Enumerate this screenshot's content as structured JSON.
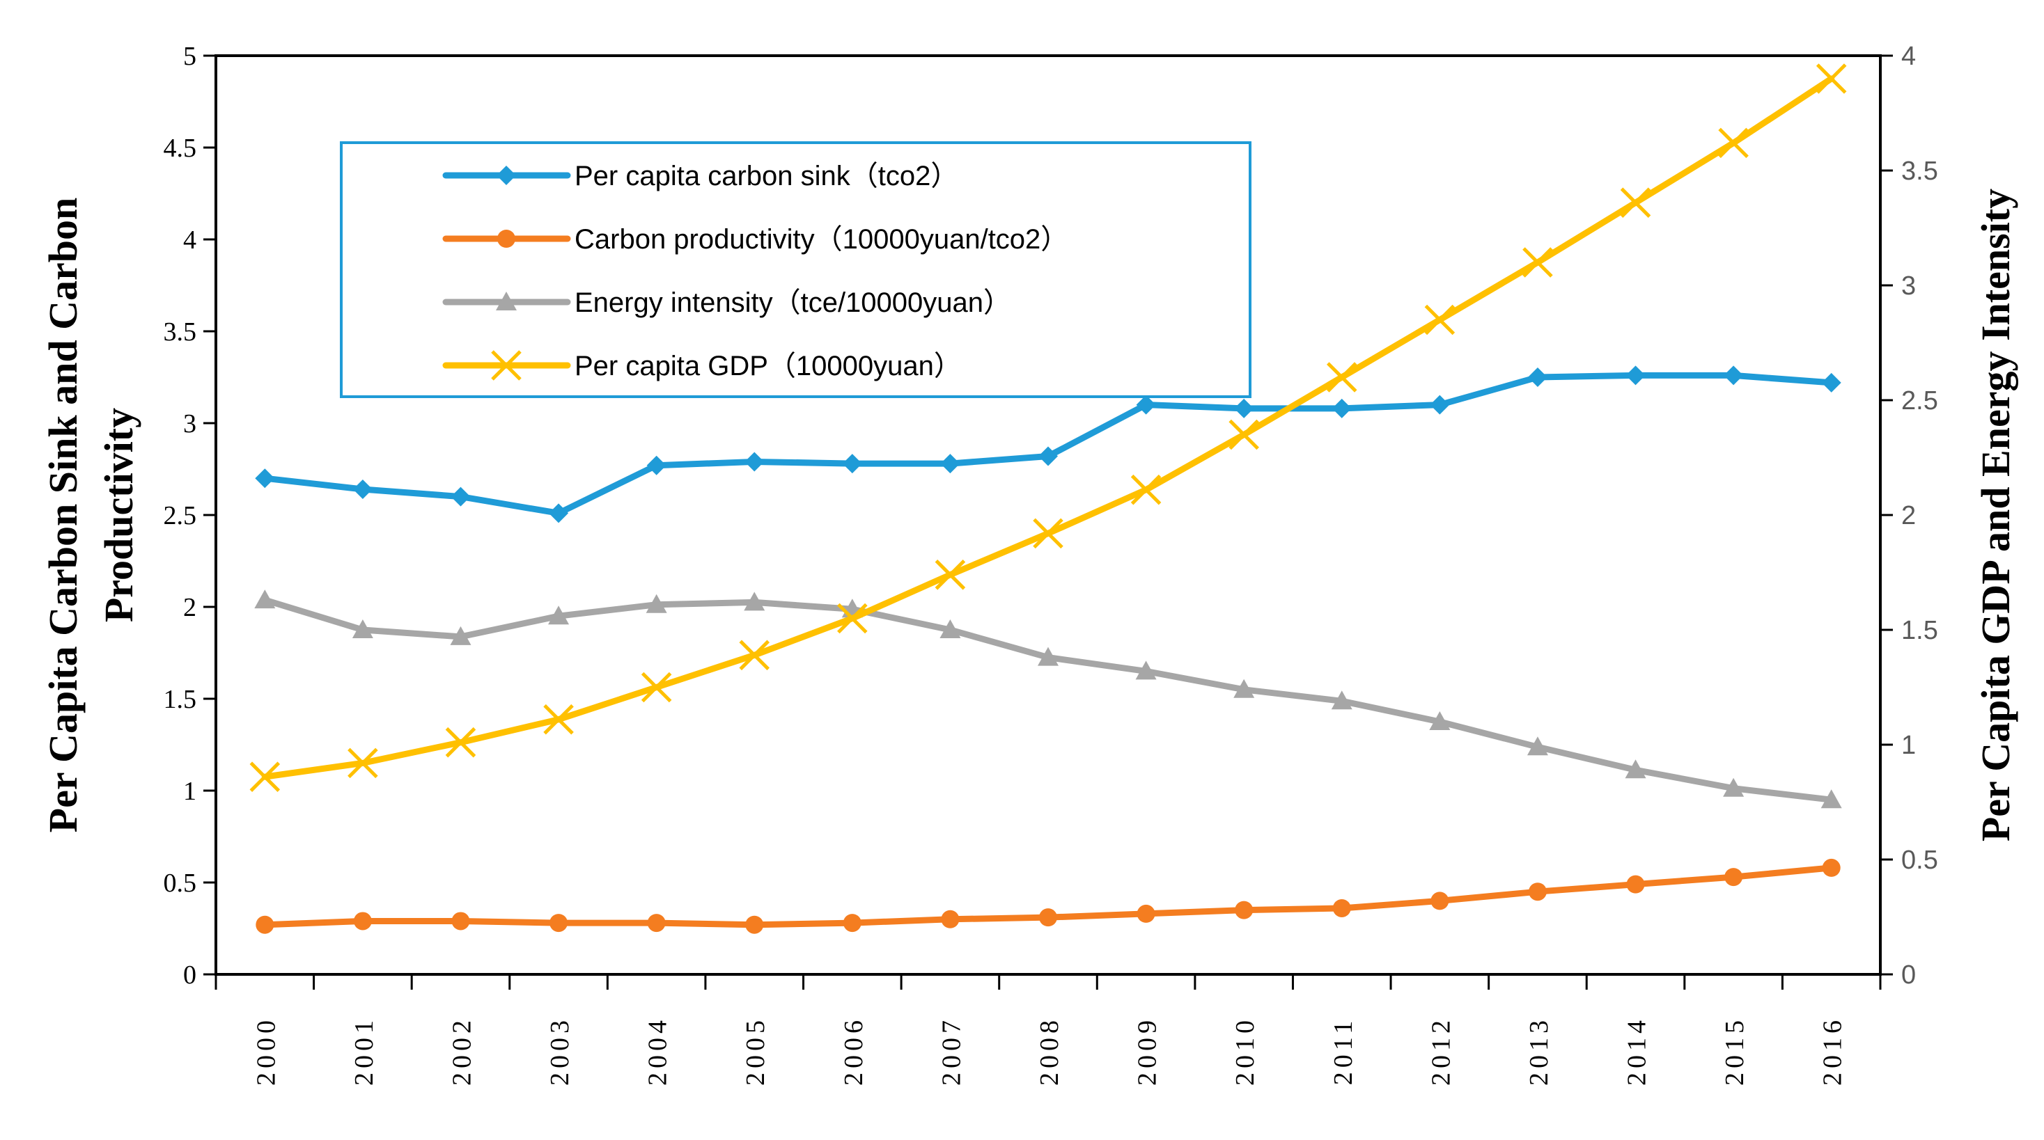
{
  "chart_data": {
    "type": "line",
    "categories": [
      "2000",
      "2001",
      "2002",
      "2003",
      "2004",
      "2005",
      "2006",
      "2007",
      "2008",
      "2009",
      "2010",
      "2011",
      "2012",
      "2013",
      "2014",
      "2015",
      "2016"
    ],
    "y_left": {
      "label_line1": "Per Capita Carbon Sink  and Carbon",
      "label_line2": "Productivity",
      "lim": [
        0,
        5
      ],
      "ticks": [
        "0",
        "0.5",
        "1",
        "1.5",
        "2",
        "2.5",
        "3",
        "3.5",
        "4",
        "4.5",
        "5"
      ]
    },
    "y_right": {
      "label": "Per Capita GDP and Energy Intensity",
      "lim": [
        0,
        4
      ],
      "ticks": [
        "0",
        "0.5",
        "1",
        "1.5",
        "2",
        "2.5",
        "3",
        "3.5",
        "4"
      ]
    },
    "series": [
      {
        "name": "Per capita carbon sink（tco2）",
        "axis": "left",
        "color": "#1f9bd7",
        "marker": "diamond",
        "values": [
          2.7,
          2.64,
          2.6,
          2.51,
          2.77,
          2.79,
          2.78,
          2.78,
          2.82,
          3.1,
          3.08,
          3.08,
          3.1,
          3.25,
          3.26,
          3.26,
          3.22
        ]
      },
      {
        "name": "Carbon productivity（10000yuan/tco2）",
        "axis": "left",
        "color": "#f47d20",
        "marker": "circle",
        "values": [
          0.27,
          0.29,
          0.29,
          0.28,
          0.28,
          0.27,
          0.28,
          0.3,
          0.31,
          0.33,
          0.35,
          0.36,
          0.4,
          0.45,
          0.49,
          0.53,
          0.58
        ]
      },
      {
        "name": "Energy intensity（tce/10000yuan）",
        "axis": "right",
        "color": "#a6a6a6",
        "marker": "triangle",
        "values": [
          1.63,
          1.5,
          1.47,
          1.56,
          1.61,
          1.62,
          1.59,
          1.5,
          1.38,
          1.32,
          1.24,
          1.19,
          1.1,
          0.99,
          0.89,
          0.81,
          0.76
        ]
      },
      {
        "name": "Per capita GDP（10000yuan）",
        "axis": "right",
        "color": "#ffc000",
        "marker": "x",
        "values": [
          0.86,
          0.92,
          1.01,
          1.11,
          1.25,
          1.39,
          1.55,
          1.74,
          1.92,
          2.11,
          2.35,
          2.6,
          2.85,
          3.1,
          3.36,
          3.62,
          3.9
        ]
      }
    ],
    "legend_position": "top-left"
  }
}
